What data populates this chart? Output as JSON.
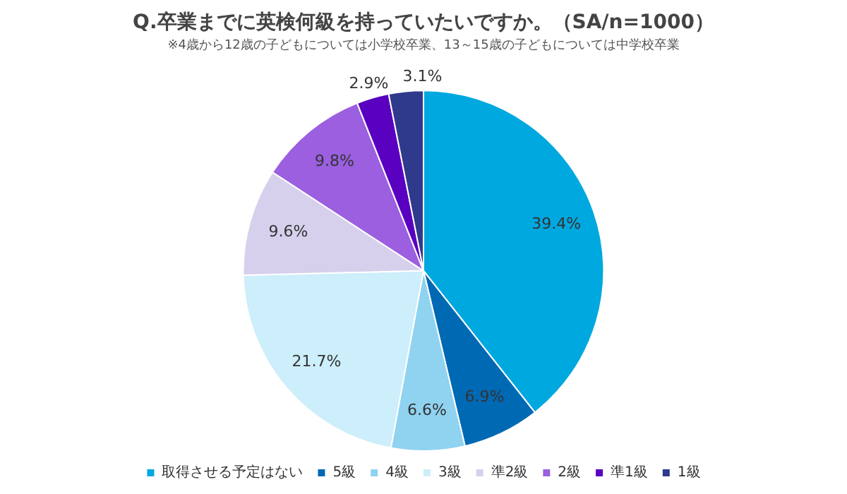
{
  "chart_data": {
    "type": "pie",
    "title": "Q.卒業までに英検何級を持っていたいですか。（SA/n=1000）",
    "subtitle": "※4歳から12歳の子どもについては小学校卒業、13～15歳の子どもについては中学校卒業",
    "categories": [
      "取得させる予定はない",
      "5級",
      "4級",
      "3級",
      "準2級",
      "2級",
      "準1級",
      "1級"
    ],
    "values": [
      39.4,
      6.9,
      6.6,
      21.7,
      9.6,
      9.8,
      2.9,
      3.1
    ],
    "colors": [
      "#00a8e0",
      "#0069b4",
      "#8fd3f0",
      "#cdeefb",
      "#d6d0ec",
      "#9b5fe0",
      "#5a00c0",
      "#2f3a8c"
    ],
    "value_labels": [
      "39.4%",
      "6.9%",
      "6.6%",
      "21.7%",
      "9.6%",
      "9.8%",
      "2.9%",
      "3.1%"
    ],
    "legend": "bottom"
  }
}
